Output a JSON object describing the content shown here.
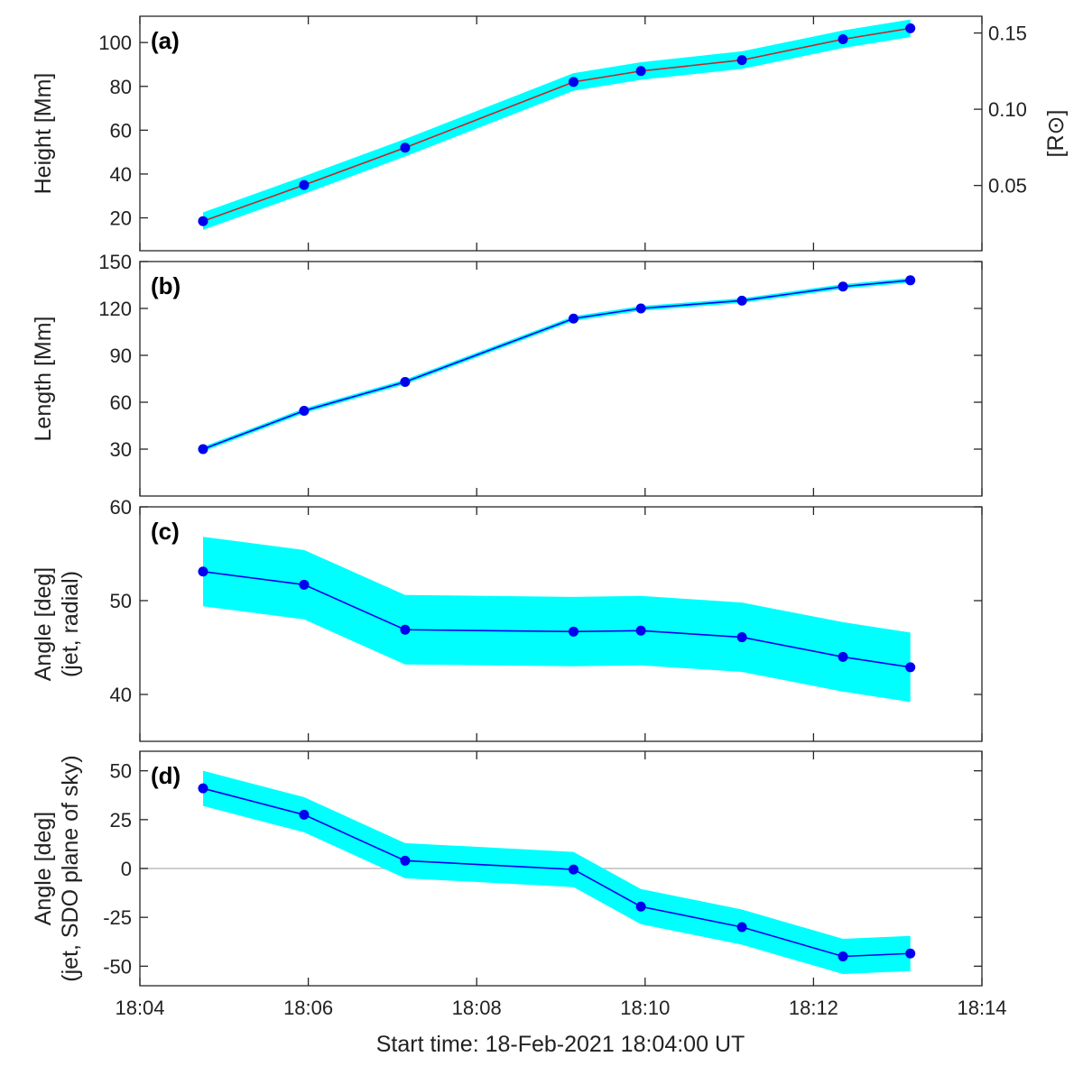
{
  "figure": {
    "xlabel": "Start time: 18-Feb-2021 18:04:00 UT",
    "x_tick_labels": [
      "18:04",
      "18:06",
      "18:08",
      "18:10",
      "18:12",
      "18:14"
    ]
  },
  "chart_data": [
    {
      "type": "line",
      "panel_label": "(a)",
      "ylabel": "Height [Mm]",
      "ylabel_right": "[R⊙]",
      "x_unit": "minutes after 18:04:00 UT",
      "xlim": [
        0,
        10
      ],
      "ylim": [
        5,
        112
      ],
      "yticks": [
        20,
        40,
        60,
        80,
        100
      ],
      "ytick_labels": [
        "20",
        "40",
        "60",
        "80",
        "100"
      ],
      "right_axis": {
        "ylim": [
          0.0072,
          0.161
        ],
        "yticks": [
          0.05,
          0.1,
          0.15
        ],
        "ytick_labels": [
          "0.05",
          "0.10",
          "0.15"
        ]
      },
      "x": [
        0.75,
        1.95,
        3.15,
        5.15,
        5.95,
        7.15,
        8.35,
        9.15
      ],
      "y": [
        18.5,
        35,
        52,
        82,
        87,
        92,
        101.5,
        106.5
      ],
      "uncertainty": [
        4,
        4,
        4,
        4,
        4,
        4,
        4,
        4
      ],
      "line_color": "#cc2222",
      "marker_color": "#0000ee",
      "band_color": "#00ffff"
    },
    {
      "type": "line",
      "panel_label": "(b)",
      "ylabel": "Length [Mm]",
      "x_unit": "minutes after 18:04:00 UT",
      "xlim": [
        0,
        10
      ],
      "ylim": [
        0,
        150
      ],
      "yticks": [
        30,
        60,
        90,
        120,
        150
      ],
      "ytick_labels": [
        "30",
        "60",
        "90",
        "120",
        "150"
      ],
      "x": [
        0.75,
        1.95,
        3.15,
        5.15,
        5.95,
        7.15,
        8.35,
        9.15
      ],
      "y": [
        30,
        54.5,
        73,
        113.5,
        120,
        125,
        134,
        138
      ],
      "uncertainty": [
        1.5,
        1.5,
        1.5,
        1.5,
        1.5,
        1.5,
        1.5,
        1.5
      ],
      "line_color": "#0000ee",
      "marker_color": "#0000ee",
      "band_color": "#00ffff"
    },
    {
      "type": "line",
      "panel_label": "(c)",
      "ylabel": [
        "Angle [deg]",
        "(jet, radial)"
      ],
      "x_unit": "minutes after 18:04:00 UT",
      "xlim": [
        0,
        10
      ],
      "ylim": [
        35,
        60
      ],
      "yticks": [
        40,
        50,
        60
      ],
      "ytick_labels": [
        "40",
        "50",
        "60"
      ],
      "x": [
        0.75,
        1.95,
        3.15,
        5.15,
        5.95,
        7.15,
        8.35,
        9.15
      ],
      "y": [
        53.1,
        51.7,
        46.9,
        46.7,
        46.8,
        46.1,
        44,
        42.9
      ],
      "uncertainty": [
        3.7,
        3.7,
        3.7,
        3.7,
        3.7,
        3.7,
        3.7,
        3.7
      ],
      "line_color": "#0000ee",
      "marker_color": "#0000ee",
      "band_color": "#00ffff"
    },
    {
      "type": "line",
      "panel_label": "(d)",
      "ylabel": [
        "Angle [deg]",
        "(jet, SDO plane of sky)"
      ],
      "x_unit": "minutes after 18:04:00 UT",
      "xlim": [
        0,
        10
      ],
      "ylim": [
        -60,
        60
      ],
      "yticks": [
        -50,
        -25,
        0,
        25,
        50
      ],
      "ytick_labels": [
        "-50",
        "-25",
        "0",
        "25",
        "50"
      ],
      "zero_line": true,
      "x": [
        0.75,
        1.95,
        3.15,
        5.15,
        5.95,
        7.15,
        8.35,
        9.15
      ],
      "y": [
        41,
        27.5,
        4,
        -0.5,
        -19.5,
        -30,
        -45,
        -43.5
      ],
      "uncertainty": [
        9,
        9,
        9,
        9,
        9,
        9,
        9,
        9
      ],
      "line_color": "#0000ee",
      "marker_color": "#0000ee",
      "band_color": "#00ffff"
    }
  ]
}
